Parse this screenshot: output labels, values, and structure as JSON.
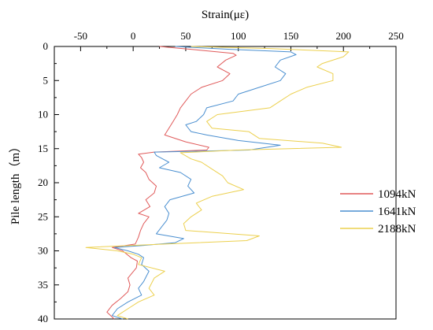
{
  "chart_data": {
    "type": "line",
    "xlabel": "Strain(με)",
    "ylabel": "Pile length（m）",
    "xlim": [
      -75,
      250
    ],
    "ylim": [
      40,
      0
    ],
    "x_ticks": [
      -50,
      0,
      50,
      100,
      150,
      200,
      250
    ],
    "y_ticks": [
      0,
      5,
      10,
      15,
      20,
      25,
      30,
      35,
      40
    ],
    "x_axis_position": "top",
    "y_axis_reversed": true,
    "grid": false,
    "legend_position": "right",
    "series": [
      {
        "name": "1094kN",
        "color": "#e05a5a",
        "points": [
          [
            25,
            0
          ],
          [
            60,
            0.5
          ],
          [
            95,
            1
          ],
          [
            98,
            1.3
          ],
          [
            88,
            2
          ],
          [
            80,
            3
          ],
          [
            92,
            4
          ],
          [
            85,
            5
          ],
          [
            65,
            6
          ],
          [
            55,
            7
          ],
          [
            50,
            8
          ],
          [
            45,
            9
          ],
          [
            42,
            10
          ],
          [
            38,
            11
          ],
          [
            34,
            12
          ],
          [
            30,
            13
          ],
          [
            50,
            14
          ],
          [
            72,
            14.8
          ],
          [
            70,
            15.2
          ],
          [
            20,
            15.5
          ],
          [
            5,
            15.8
          ],
          [
            8,
            16.3
          ],
          [
            10,
            17
          ],
          [
            7,
            17.8
          ],
          [
            12,
            18.5
          ],
          [
            15,
            19.5
          ],
          [
            22,
            20.5
          ],
          [
            20,
            21.5
          ],
          [
            12,
            22.5
          ],
          [
            16,
            23.5
          ],
          [
            5,
            24.5
          ],
          [
            15,
            25
          ],
          [
            10,
            26
          ],
          [
            7,
            27
          ],
          [
            5,
            28
          ],
          [
            2,
            29
          ],
          [
            -20,
            29.5
          ],
          [
            -10,
            30
          ],
          [
            -2,
            31
          ],
          [
            4,
            31.5
          ],
          [
            3,
            32.5
          ],
          [
            -5,
            34
          ],
          [
            -3,
            35
          ],
          [
            -5,
            36
          ],
          [
            -12,
            37
          ],
          [
            -20,
            38
          ],
          [
            -25,
            39
          ],
          [
            -18,
            40
          ]
        ]
      },
      {
        "name": "1641kN",
        "color": "#4a8fd0",
        "points": [
          [
            40,
            0
          ],
          [
            90,
            0.4
          ],
          [
            150,
            0.8
          ],
          [
            155,
            1.2
          ],
          [
            140,
            2
          ],
          [
            135,
            3
          ],
          [
            145,
            4
          ],
          [
            140,
            5
          ],
          [
            120,
            6
          ],
          [
            100,
            7
          ],
          [
            95,
            8
          ],
          [
            70,
            9
          ],
          [
            67,
            10
          ],
          [
            60,
            11
          ],
          [
            50,
            11.5
          ],
          [
            55,
            12.5
          ],
          [
            70,
            13
          ],
          [
            100,
            13.8
          ],
          [
            140,
            14.5
          ],
          [
            110,
            15.2
          ],
          [
            20,
            15.5
          ],
          [
            22,
            16
          ],
          [
            28,
            16.5
          ],
          [
            34,
            17
          ],
          [
            25,
            17.8
          ],
          [
            45,
            18.5
          ],
          [
            55,
            19.5
          ],
          [
            52,
            20.5
          ],
          [
            58,
            21.5
          ],
          [
            35,
            22.5
          ],
          [
            30,
            23.5
          ],
          [
            34,
            24.5
          ],
          [
            32,
            25.5
          ],
          [
            27,
            26.5
          ],
          [
            22,
            27.5
          ],
          [
            48,
            28.2
          ],
          [
            40,
            28.8
          ],
          [
            10,
            29.2
          ],
          [
            -18,
            29.5
          ],
          [
            -5,
            30
          ],
          [
            5,
            30.5
          ],
          [
            10,
            31
          ],
          [
            8,
            32
          ],
          [
            15,
            33
          ],
          [
            10,
            34.5
          ],
          [
            5,
            35.5
          ],
          [
            8,
            36.5
          ],
          [
            -5,
            37.5
          ],
          [
            -15,
            38.5
          ],
          [
            -20,
            39.5
          ],
          [
            -10,
            40
          ]
        ]
      },
      {
        "name": "2188kN",
        "color": "#ecd04e",
        "points": [
          [
            55,
            0
          ],
          [
            130,
            0.3
          ],
          [
            205,
            0.8
          ],
          [
            200,
            1.5
          ],
          [
            180,
            2.5
          ],
          [
            175,
            3
          ],
          [
            190,
            4
          ],
          [
            190,
            5
          ],
          [
            165,
            6
          ],
          [
            150,
            7
          ],
          [
            140,
            8
          ],
          [
            130,
            9
          ],
          [
            80,
            10
          ],
          [
            70,
            11
          ],
          [
            75,
            12
          ],
          [
            110,
            12.5
          ],
          [
            120,
            13.5
          ],
          [
            180,
            14.2
          ],
          [
            198,
            14.8
          ],
          [
            100,
            15.2
          ],
          [
            45,
            15.6
          ],
          [
            55,
            16.5
          ],
          [
            65,
            17
          ],
          [
            75,
            18
          ],
          [
            85,
            19
          ],
          [
            90,
            20
          ],
          [
            105,
            21
          ],
          [
            75,
            22
          ],
          [
            60,
            23
          ],
          [
            65,
            24
          ],
          [
            55,
            25
          ],
          [
            48,
            26
          ],
          [
            50,
            27
          ],
          [
            120,
            27.8
          ],
          [
            108,
            28.5
          ],
          [
            30,
            29
          ],
          [
            -45,
            29.5
          ],
          [
            -15,
            30
          ],
          [
            0,
            30.5
          ],
          [
            8,
            31
          ],
          [
            5,
            32
          ],
          [
            30,
            33
          ],
          [
            20,
            34
          ],
          [
            15,
            35.5
          ],
          [
            20,
            36.5
          ],
          [
            5,
            37.5
          ],
          [
            -5,
            38.5
          ],
          [
            -15,
            39.5
          ],
          [
            -5,
            40
          ]
        ]
      }
    ]
  }
}
